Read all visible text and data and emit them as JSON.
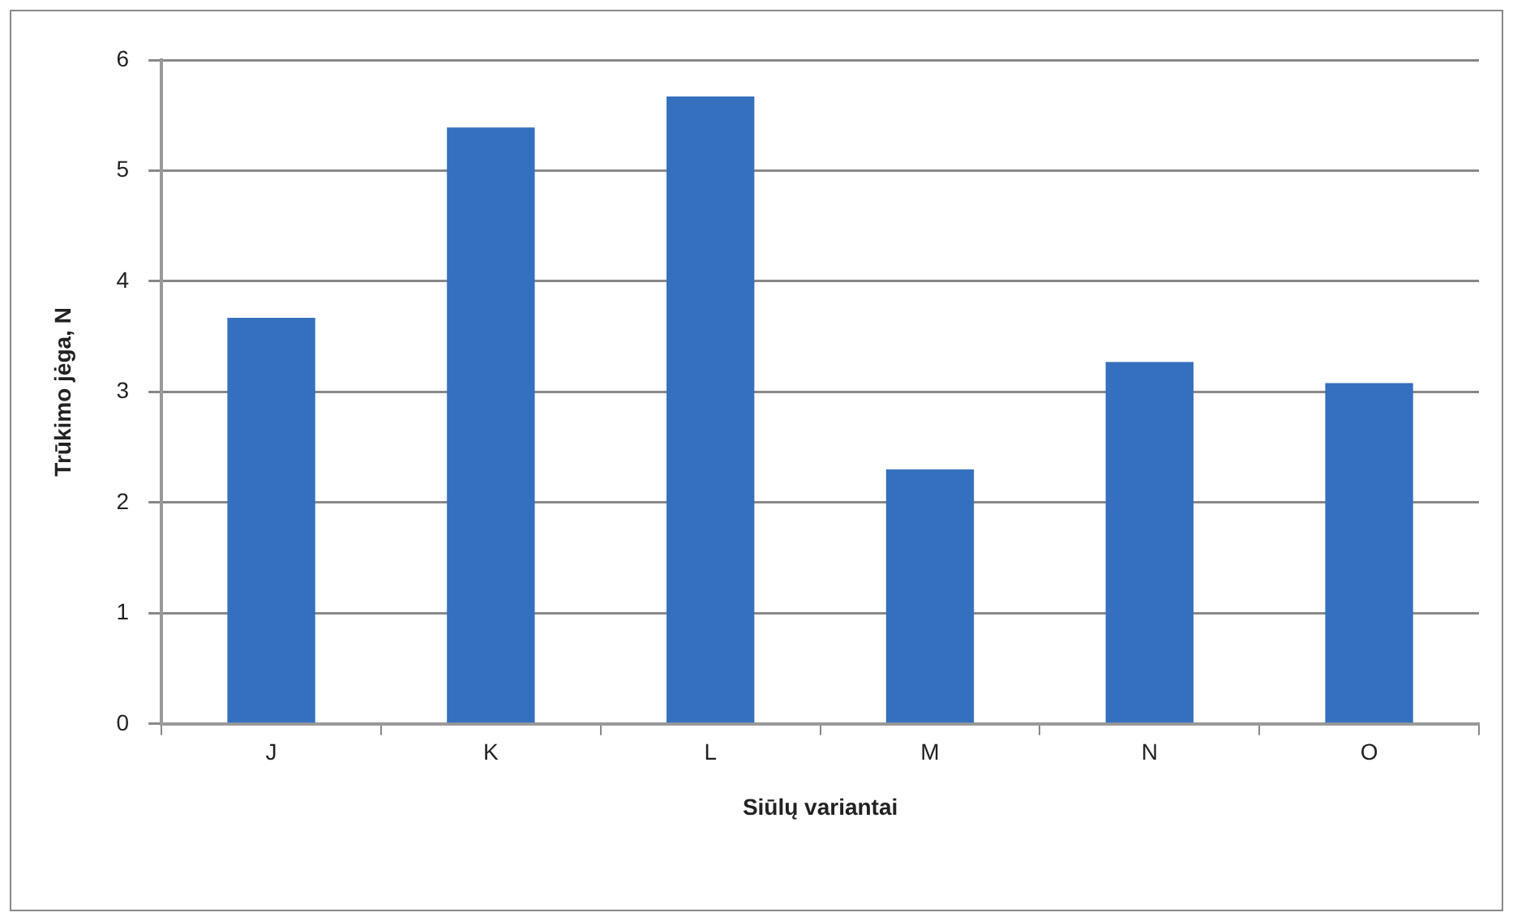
{
  "chart_data": {
    "type": "bar",
    "xlabel": "Siūlų variantai",
    "ylabel": "Trūkimo jėga, N",
    "categories": [
      "J",
      "K",
      "L",
      "M",
      "N",
      "O"
    ],
    "values": [
      3.67,
      5.39,
      5.67,
      2.3,
      3.27,
      3.08
    ],
    "color": "#3470bd",
    "ylim": [
      0,
      6
    ],
    "yticks": [
      0,
      1,
      2,
      3,
      4,
      5,
      6
    ],
    "grid": "y",
    "legend": false
  }
}
